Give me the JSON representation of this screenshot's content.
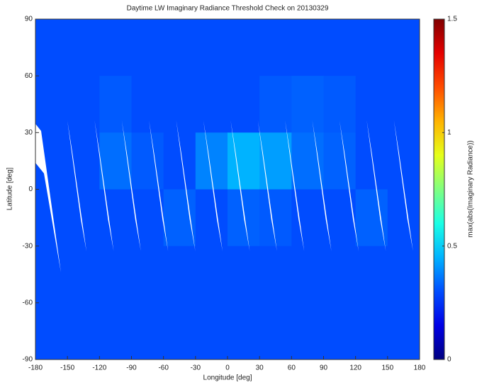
{
  "chart_data": {
    "type": "heatmap",
    "title": "Daytime LW Imaginary Radiance Threshold Check on 20130329",
    "x_label": "Longitude [deg]",
    "y_label": "Latitude [deg]",
    "colorbar_label": "max(abs(Imaginary Radiance))",
    "colormap": "jet",
    "xbins": [
      -180,
      -150,
      -120,
      -90,
      -60,
      -30,
      0,
      30,
      60,
      90,
      120,
      150,
      180
    ],
    "ybins": [
      90,
      60,
      30,
      0,
      -30,
      -60,
      -90
    ],
    "values": [
      [
        0.3,
        0.3,
        0.3,
        0.3,
        0.3,
        0.3,
        0.3,
        0.3,
        0.3,
        0.3,
        0.3,
        0.3
      ],
      [
        0.3,
        0.3,
        0.32,
        0.3,
        0.3,
        0.3,
        0.3,
        0.32,
        0.33,
        0.32,
        0.3,
        0.3
      ],
      [
        0.3,
        0.3,
        0.35,
        0.32,
        0.3,
        0.38,
        0.45,
        0.42,
        0.35,
        0.33,
        0.3,
        0.3
      ],
      [
        0.3,
        0.3,
        0.3,
        0.3,
        0.33,
        0.3,
        0.33,
        0.32,
        0.3,
        0.3,
        0.33,
        0.3
      ],
      [
        0.3,
        0.3,
        0.3,
        0.3,
        0.3,
        0.3,
        0.3,
        0.3,
        0.3,
        0.3,
        0.3,
        0.3
      ],
      [
        0.3,
        0.3,
        0.3,
        0.3,
        0.3,
        0.3,
        0.3,
        0.3,
        0.3,
        0.3,
        0.3,
        0.3
      ]
    ],
    "xlim": [
      -180,
      180
    ],
    "ylim": [
      -90,
      90
    ],
    "xticks": [
      -180,
      -150,
      -120,
      -90,
      -60,
      -30,
      0,
      30,
      60,
      90,
      120,
      150,
      180
    ],
    "yticks": [
      -90,
      -60,
      -30,
      0,
      30,
      60,
      90
    ],
    "clim": [
      0,
      1.5
    ],
    "cticks": [
      0,
      0.5,
      1,
      1.5
    ]
  }
}
